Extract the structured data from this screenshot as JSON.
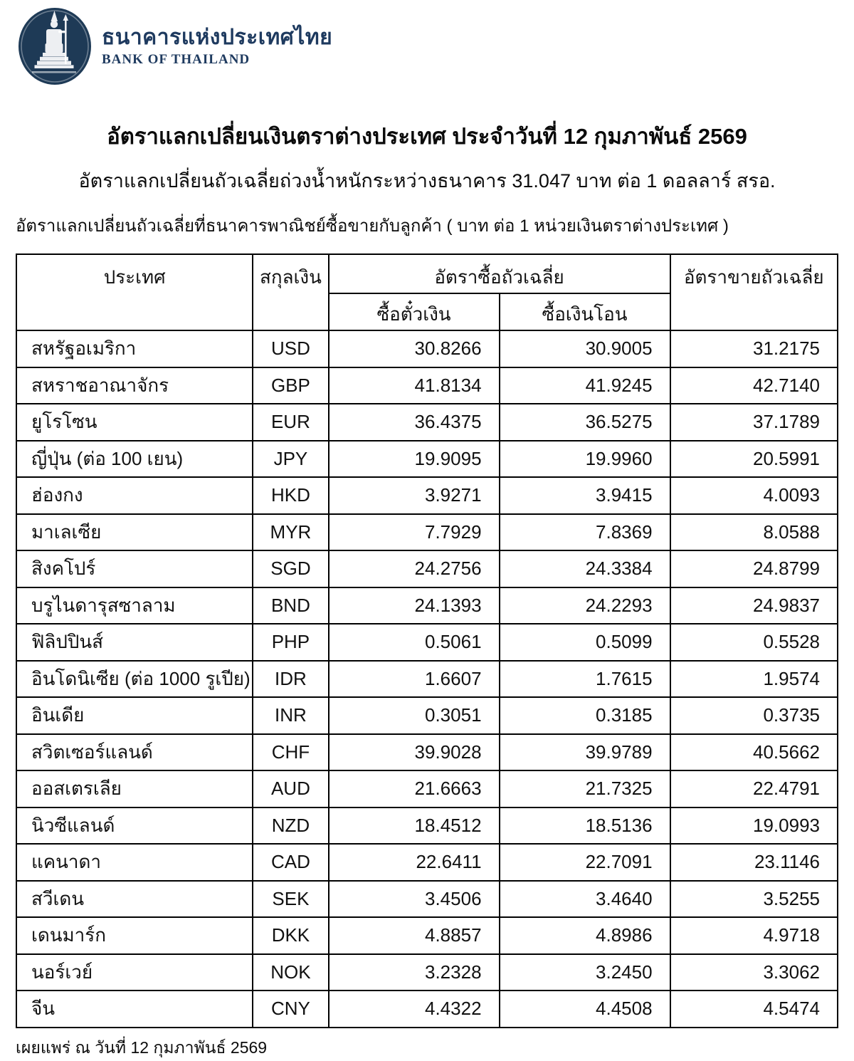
{
  "brand": {
    "name_th": "ธนาคารแห่งประเทศไทย",
    "name_en": "BANK OF THAILAND",
    "logo_color": "#1e3a56"
  },
  "header": {
    "title": "อัตราแลกเปลี่ยนเงินตราต่างประเทศ ประจำวันที่ 12 กุมภาพันธ์ 2569",
    "subtitle": "อัตราแลกเปลี่ยนถัวเฉลี่ยถ่วงน้ำหนักระหว่างธนาคาร 31.047 บาท ต่อ 1 ดอลลาร์ สรอ.",
    "note": "อัตราแลกเปลี่ยนถัวเฉลี่ยที่ธนาคารพาณิชย์ซื้อขายกับลูกค้า ( บาท ต่อ 1 หน่วยเงินตราต่างประเทศ )"
  },
  "table": {
    "columns": {
      "country": "ประเทศ",
      "currency": "สกุลเงิน",
      "buy_group": "อัตราซื้อถัวเฉลี่ย",
      "buy_bill": "ซื้อตั๋วเงิน",
      "buy_transfer": "ซื้อเงินโอน",
      "sell": "อัตราขายถัวเฉลี่ย"
    },
    "rows": [
      {
        "country": "สหรัฐอเมริกา",
        "code": "USD",
        "buy_bill": "30.8266",
        "buy_transfer": "30.9005",
        "sell": "31.2175"
      },
      {
        "country": "สหราชอาณาจักร",
        "code": "GBP",
        "buy_bill": "41.8134",
        "buy_transfer": "41.9245",
        "sell": "42.7140"
      },
      {
        "country": "ยูโรโซน",
        "code": "EUR",
        "buy_bill": "36.4375",
        "buy_transfer": "36.5275",
        "sell": "37.1789"
      },
      {
        "country": "ญี่ปุ่น (ต่อ 100 เยน)",
        "code": "JPY",
        "buy_bill": "19.9095",
        "buy_transfer": "19.9960",
        "sell": "20.5991"
      },
      {
        "country": "ฮ่องกง",
        "code": "HKD",
        "buy_bill": "3.9271",
        "buy_transfer": "3.9415",
        "sell": "4.0093"
      },
      {
        "country": "มาเลเซีย",
        "code": "MYR",
        "buy_bill": "7.7929",
        "buy_transfer": "7.8369",
        "sell": "8.0588"
      },
      {
        "country": "สิงคโปร์",
        "code": "SGD",
        "buy_bill": "24.2756",
        "buy_transfer": "24.3384",
        "sell": "24.8799"
      },
      {
        "country": "บรูไนดารุสซาลาม",
        "code": "BND",
        "buy_bill": "24.1393",
        "buy_transfer": "24.2293",
        "sell": "24.9837"
      },
      {
        "country": "ฟิลิปปินส์",
        "code": "PHP",
        "buy_bill": "0.5061",
        "buy_transfer": "0.5099",
        "sell": "0.5528"
      },
      {
        "country": "อินโดนิเซีย (ต่อ 1000 รูเปีย)",
        "code": "IDR",
        "buy_bill": "1.6607",
        "buy_transfer": "1.7615",
        "sell": "1.9574"
      },
      {
        "country": "อินเดีย",
        "code": "INR",
        "buy_bill": "0.3051",
        "buy_transfer": "0.3185",
        "sell": "0.3735"
      },
      {
        "country": "สวิตเซอร์แลนด์",
        "code": "CHF",
        "buy_bill": "39.9028",
        "buy_transfer": "39.9789",
        "sell": "40.5662"
      },
      {
        "country": "ออสเตรเลีย",
        "code": "AUD",
        "buy_bill": "21.6663",
        "buy_transfer": "21.7325",
        "sell": "22.4791"
      },
      {
        "country": "นิวซีแลนด์",
        "code": "NZD",
        "buy_bill": "18.4512",
        "buy_transfer": "18.5136",
        "sell": "19.0993"
      },
      {
        "country": "แคนาดา",
        "code": "CAD",
        "buy_bill": "22.6411",
        "buy_transfer": "22.7091",
        "sell": "23.1146"
      },
      {
        "country": "สวีเดน",
        "code": "SEK",
        "buy_bill": "3.4506",
        "buy_transfer": "3.4640",
        "sell": "3.5255"
      },
      {
        "country": "เดนมาร์ก",
        "code": "DKK",
        "buy_bill": "4.8857",
        "buy_transfer": "4.8986",
        "sell": "4.9718"
      },
      {
        "country": "นอร์เวย์",
        "code": "NOK",
        "buy_bill": "3.2328",
        "buy_transfer": "3.2450",
        "sell": "3.3062"
      },
      {
        "country": "จีน",
        "code": "CNY",
        "buy_bill": "4.4322",
        "buy_transfer": "4.4508",
        "sell": "4.5474"
      }
    ]
  },
  "footer": {
    "published": "เผยแพร่ ณ วันที่ 12 กุมภาพันธ์ 2569"
  }
}
